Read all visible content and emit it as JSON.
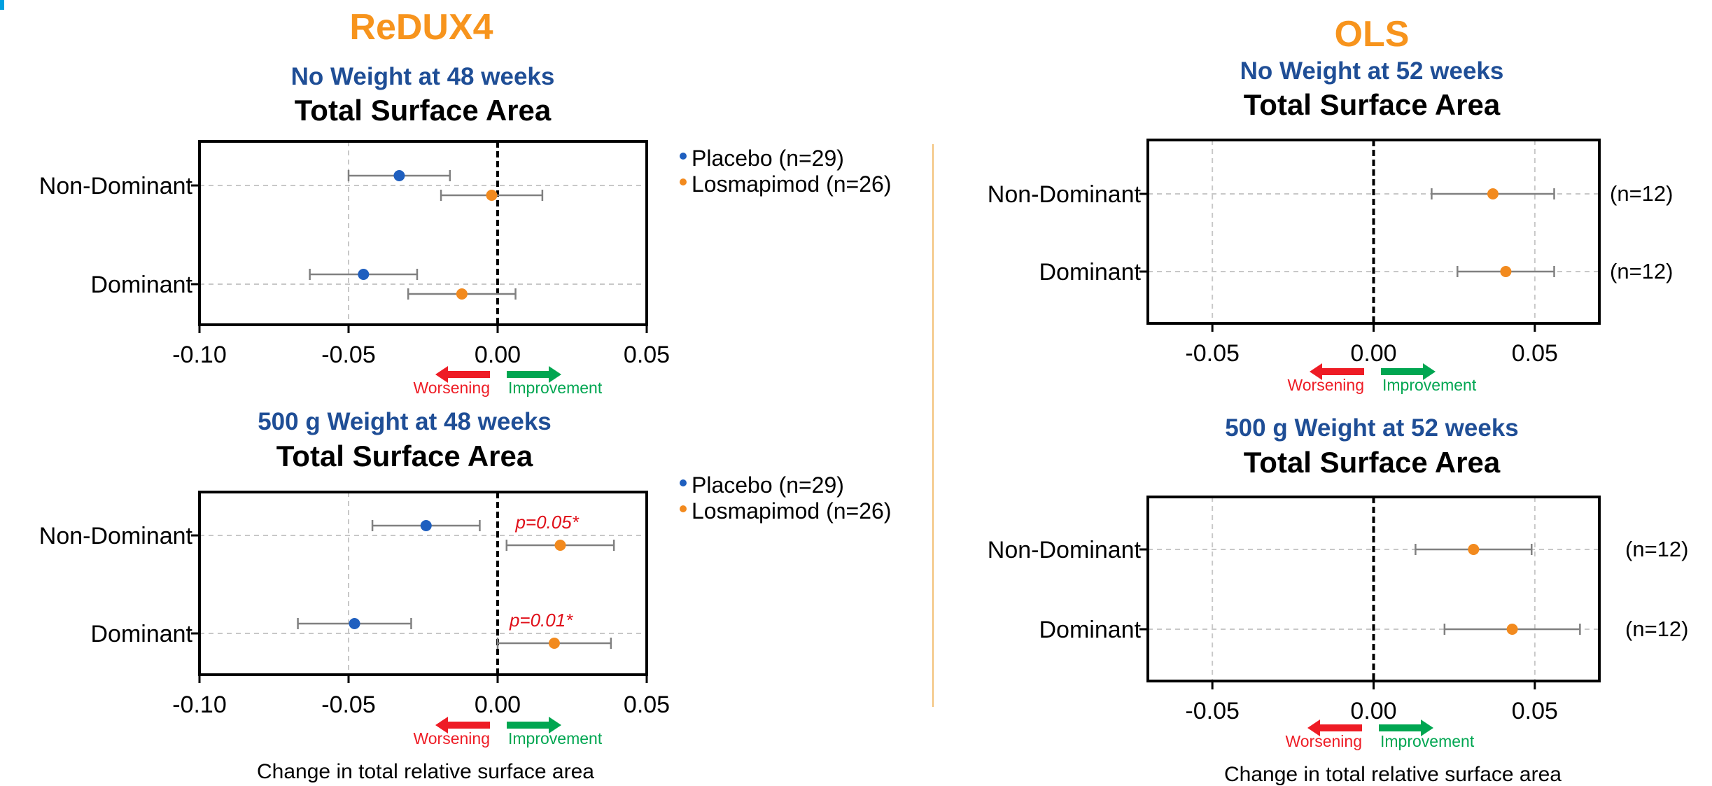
{
  "colors": {
    "title_orange": "#f7941d",
    "subtitle_blue": "#1f4e96",
    "placebo": "#1f5fbf",
    "losmapimod": "#f28a1e",
    "worsening": "#ee1c25",
    "improvement": "#00a651",
    "pvalue": "#e0101a",
    "separator": "#f3c27a",
    "error_bar": "#808080",
    "grid": "#c8c8c8"
  },
  "sections": {
    "redux4": {
      "title": "ReDUX4"
    },
    "ols": {
      "title": "OLS"
    }
  },
  "direction": {
    "worsening": "Worsening",
    "improvement": "Improvement"
  },
  "xaxis_label": "Change in total relative surface area",
  "chart_data": [
    {
      "id": "redux4-no-weight",
      "type": "scatter",
      "subtitle": "No Weight at 48 weeks",
      "title": "Total Surface Area",
      "categories": [
        "Non-Dominant",
        "Dominant"
      ],
      "xlim": [
        -0.1,
        0.05
      ],
      "xticks": [
        "-0.10",
        "-0.05",
        "0.00",
        "0.05"
      ],
      "xtick_values": [
        -0.1,
        -0.05,
        0.0,
        0.05
      ],
      "grid": true,
      "legend": "right",
      "series": [
        {
          "name": "Placebo (n=29)",
          "key": "placebo",
          "values": [
            -0.033,
            -0.045
          ],
          "lower": [
            -0.05,
            -0.063
          ],
          "upper": [
            -0.016,
            -0.027
          ]
        },
        {
          "name": "Losmapimod (n=26)",
          "key": "losmapimod",
          "values": [
            -0.002,
            -0.012
          ],
          "lower": [
            -0.019,
            -0.03
          ],
          "upper": [
            0.015,
            0.006
          ]
        }
      ],
      "annotations": []
    },
    {
      "id": "redux4-500g",
      "type": "scatter",
      "subtitle": "500 g Weight at 48 weeks",
      "title": "Total Surface Area",
      "categories": [
        "Non-Dominant",
        "Dominant"
      ],
      "xlim": [
        -0.1,
        0.05
      ],
      "xticks": [
        "-0.10",
        "-0.05",
        "0.00",
        "0.05"
      ],
      "xtick_values": [
        -0.1,
        -0.05,
        0.0,
        0.05
      ],
      "grid": true,
      "legend": "right",
      "series": [
        {
          "name": "Placebo (n=29)",
          "key": "placebo",
          "values": [
            -0.024,
            -0.048
          ],
          "lower": [
            -0.042,
            -0.067
          ],
          "upper": [
            -0.006,
            -0.029
          ]
        },
        {
          "name": "Losmapimod (n=26)",
          "key": "losmapimod",
          "values": [
            0.021,
            0.019
          ],
          "lower": [
            0.003,
            0.0
          ],
          "upper": [
            0.039,
            0.038
          ]
        }
      ],
      "annotations": [
        {
          "text": "p=0.05*",
          "x": 0.021,
          "category": "Non-Dominant"
        },
        {
          "text": "p=0.01*",
          "x": 0.019,
          "category": "Dominant"
        }
      ]
    },
    {
      "id": "ols-no-weight",
      "type": "scatter",
      "subtitle": "No Weight at 52 weeks",
      "title": "Total Surface Area",
      "categories": [
        "Non-Dominant",
        "Dominant"
      ],
      "xlim": [
        -0.07,
        0.07
      ],
      "xticks": [
        "-0.05",
        "0.00",
        "0.05"
      ],
      "xtick_values": [
        -0.05,
        0.0,
        0.05
      ],
      "grid": true,
      "legend": "none",
      "series": [
        {
          "key": "losmapimod",
          "values": [
            0.037,
            0.041
          ],
          "lower": [
            0.018,
            0.026
          ],
          "upper": [
            0.056,
            0.056
          ]
        }
      ],
      "n_labels": [
        "(n=12)",
        "(n=12)"
      ],
      "annotations": []
    },
    {
      "id": "ols-500g",
      "type": "scatter",
      "subtitle": "500 g Weight at 52 weeks",
      "title": "Total Surface Area",
      "categories": [
        "Non-Dominant",
        "Dominant"
      ],
      "xlim": [
        -0.07,
        0.07
      ],
      "xticks": [
        "-0.05",
        "0.00",
        "0.05"
      ],
      "xtick_values": [
        -0.05,
        0.0,
        0.05
      ],
      "grid": true,
      "legend": "none",
      "series": [
        {
          "key": "losmapimod",
          "values": [
            0.031,
            0.043
          ],
          "lower": [
            0.013,
            0.022
          ],
          "upper": [
            0.049,
            0.064
          ]
        }
      ],
      "n_labels": [
        "(n=12)",
        "(n=12)"
      ],
      "annotations": []
    }
  ]
}
